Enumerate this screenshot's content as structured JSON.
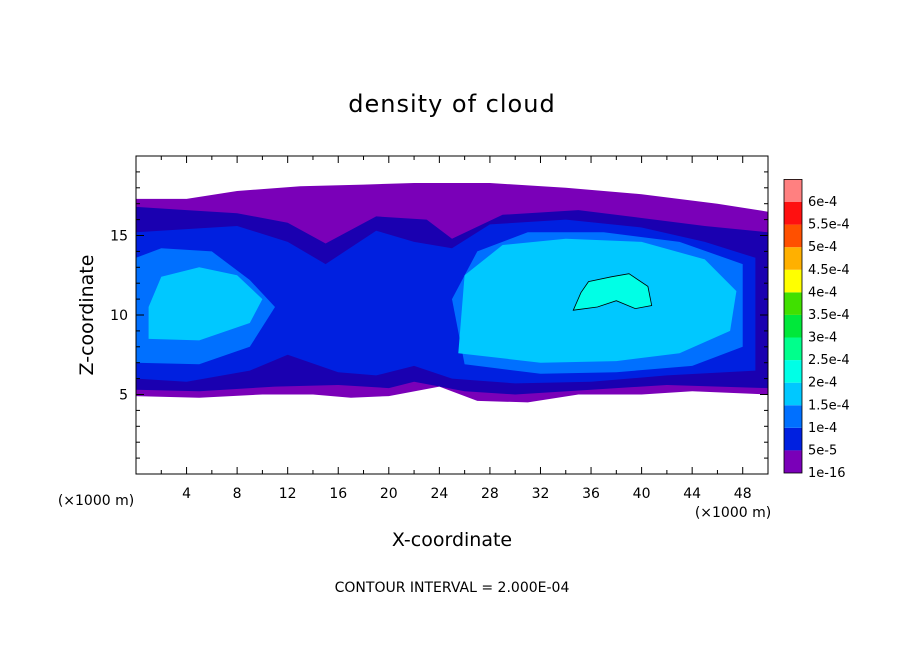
{
  "chart_data": {
    "type": "heatmap",
    "title": "density of cloud",
    "xlabel": "X-coordinate",
    "ylabel": "Z-coordinate",
    "x_unit": "(×1000 m)",
    "z_unit": "(×1000 m)",
    "xlim": [
      0,
      50
    ],
    "ylim": [
      0,
      20
    ],
    "x_ticks": [
      4,
      8,
      12,
      16,
      20,
      24,
      28,
      32,
      36,
      40,
      44,
      48
    ],
    "y_ticks": [
      5,
      10,
      15
    ],
    "footer": "CONTOUR INTERVAL = 2.000E-04",
    "contour_interval": 0.0002,
    "colorbar": {
      "labels": [
        "1e-16",
        "5e-5",
        "1e-4",
        "1.5e-4",
        "2e-4",
        "2.5e-4",
        "3e-4",
        "3.5e-4",
        "4e-4",
        "4.5e-4",
        "5e-4",
        "5.5e-4",
        "6e-4"
      ],
      "colors": [
        "#7a00b8",
        "#1a00b0",
        "#0020e0",
        "#0070ff",
        "#00c8ff",
        "#00ffe6",
        "#00ff8c",
        "#00e83a",
        "#40e000",
        "#ffff00",
        "#ffb000",
        "#ff5000",
        "#ff1010",
        "#ff8080"
      ]
    },
    "regions": [
      {
        "level": "1e-16",
        "points": [
          [
            0,
            4.9
          ],
          [
            5,
            4.8
          ],
          [
            10,
            5.0
          ],
          [
            14,
            5.0
          ],
          [
            17,
            4.8
          ],
          [
            20,
            4.9
          ],
          [
            24,
            5.5
          ],
          [
            27,
            4.6
          ],
          [
            31,
            4.5
          ],
          [
            35,
            5.0
          ],
          [
            40,
            5.0
          ],
          [
            44,
            5.2
          ],
          [
            50,
            5.0
          ],
          [
            50,
            16.5
          ],
          [
            46,
            17.0
          ],
          [
            40,
            17.6
          ],
          [
            34,
            18.0
          ],
          [
            28,
            18.3
          ],
          [
            22,
            18.3
          ],
          [
            18,
            18.2
          ],
          [
            13,
            18.1
          ],
          [
            8,
            17.8
          ],
          [
            4,
            17.3
          ],
          [
            0,
            17.3
          ]
        ]
      },
      {
        "level": "5e-5",
        "points": [
          [
            0,
            5.3
          ],
          [
            5,
            5.2
          ],
          [
            11,
            5.5
          ],
          [
            16,
            5.6
          ],
          [
            20,
            5.4
          ],
          [
            22,
            5.8
          ],
          [
            26,
            5.2
          ],
          [
            30,
            5.0
          ],
          [
            36,
            5.3
          ],
          [
            42,
            5.6
          ],
          [
            50,
            5.4
          ],
          [
            50,
            15.2
          ],
          [
            45,
            15.6
          ],
          [
            40,
            16.1
          ],
          [
            35,
            16.6
          ],
          [
            29,
            16.3
          ],
          [
            25,
            14.8
          ],
          [
            23,
            16.0
          ],
          [
            19,
            16.2
          ],
          [
            15,
            14.5
          ],
          [
            12,
            15.8
          ],
          [
            8,
            16.4
          ],
          [
            4,
            16.6
          ],
          [
            0,
            16.8
          ]
        ]
      },
      {
        "level": "1e-4",
        "points": [
          [
            0,
            6.0
          ],
          [
            4,
            5.8
          ],
          [
            9,
            6.5
          ],
          [
            12,
            7.5
          ],
          [
            16,
            6.4
          ],
          [
            19,
            6.2
          ],
          [
            22,
            6.8
          ],
          [
            25,
            6.0
          ],
          [
            30,
            5.7
          ],
          [
            36,
            5.8
          ],
          [
            42,
            6.2
          ],
          [
            49,
            6.5
          ],
          [
            49,
            13.6
          ],
          [
            45,
            14.6
          ],
          [
            40,
            15.5
          ],
          [
            34,
            16.0
          ],
          [
            28,
            15.7
          ],
          [
            25,
            14.2
          ],
          [
            22,
            14.6
          ],
          [
            19,
            15.3
          ],
          [
            15,
            13.2
          ],
          [
            12,
            14.6
          ],
          [
            8,
            15.6
          ],
          [
            4,
            15.4
          ],
          [
            0,
            15.2
          ]
        ]
      },
      {
        "level": "1.5e-4",
        "points": [
          [
            0,
            7.0
          ],
          [
            5,
            6.9
          ],
          [
            9,
            8.0
          ],
          [
            11,
            10.5
          ],
          [
            9,
            12.2
          ],
          [
            6,
            14.0
          ],
          [
            2,
            14.2
          ],
          [
            0,
            13.6
          ]
        ]
      },
      {
        "level": "1.5e-4",
        "points": [
          [
            26,
            6.9
          ],
          [
            32,
            6.3
          ],
          [
            38,
            6.4
          ],
          [
            44,
            6.8
          ],
          [
            48,
            8.0
          ],
          [
            48,
            13.2
          ],
          [
            43,
            14.6
          ],
          [
            37,
            15.2
          ],
          [
            31,
            15.2
          ],
          [
            27,
            14.0
          ],
          [
            25,
            11.0
          ]
        ]
      },
      {
        "level": "2e-4",
        "points": [
          [
            1,
            8.5
          ],
          [
            5,
            8.4
          ],
          [
            9,
            9.5
          ],
          [
            10,
            11.0
          ],
          [
            8,
            12.5
          ],
          [
            5,
            13.0
          ],
          [
            2,
            12.4
          ],
          [
            1,
            10.5
          ]
        ]
      },
      {
        "level": "2e-4",
        "points": [
          [
            25.5,
            7.6
          ],
          [
            32,
            7.0
          ],
          [
            38,
            7.1
          ],
          [
            43,
            7.6
          ],
          [
            47,
            9.0
          ],
          [
            47.5,
            11.5
          ],
          [
            45,
            13.5
          ],
          [
            40,
            14.6
          ],
          [
            34,
            14.8
          ],
          [
            29,
            14.4
          ],
          [
            26,
            12.5
          ]
        ]
      },
      {
        "level": "2.5e-4",
        "points": [
          [
            34.6,
            10.3
          ],
          [
            35.2,
            11.4
          ],
          [
            35.8,
            12.1
          ],
          [
            37.6,
            12.4
          ],
          [
            39,
            12.6
          ],
          [
            40.5,
            11.8
          ],
          [
            40.8,
            10.6
          ],
          [
            39.5,
            10.4
          ],
          [
            38,
            10.9
          ],
          [
            36.5,
            10.5
          ]
        ]
      }
    ]
  }
}
